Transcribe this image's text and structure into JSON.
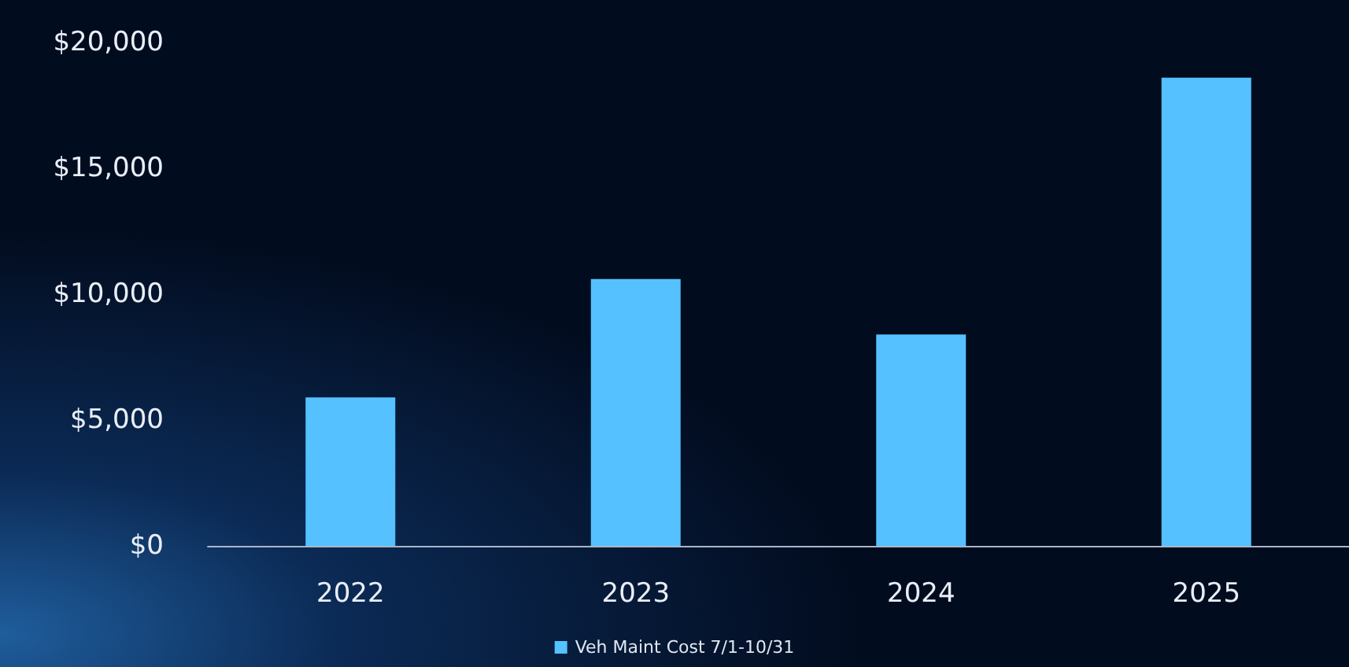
{
  "chart_data": {
    "type": "bar",
    "categories": [
      "2022",
      "2023",
      "2024",
      "2025"
    ],
    "series": [
      {
        "name": "Veh Maint Cost 7/1-10/31",
        "color": "#55c1ff",
        "values": [
          5900,
          10600,
          8400,
          18600
        ]
      }
    ],
    "ylim": [
      0,
      20000
    ],
    "yticks": [
      {
        "value": 0,
        "label": "$0"
      },
      {
        "value": 5000,
        "label": "$5,000"
      },
      {
        "value": 10000,
        "label": "$10,000"
      },
      {
        "value": 15000,
        "label": "$15,000"
      },
      {
        "value": 20000,
        "label": "$20,000"
      }
    ],
    "grid": false,
    "legend": "bottom"
  }
}
